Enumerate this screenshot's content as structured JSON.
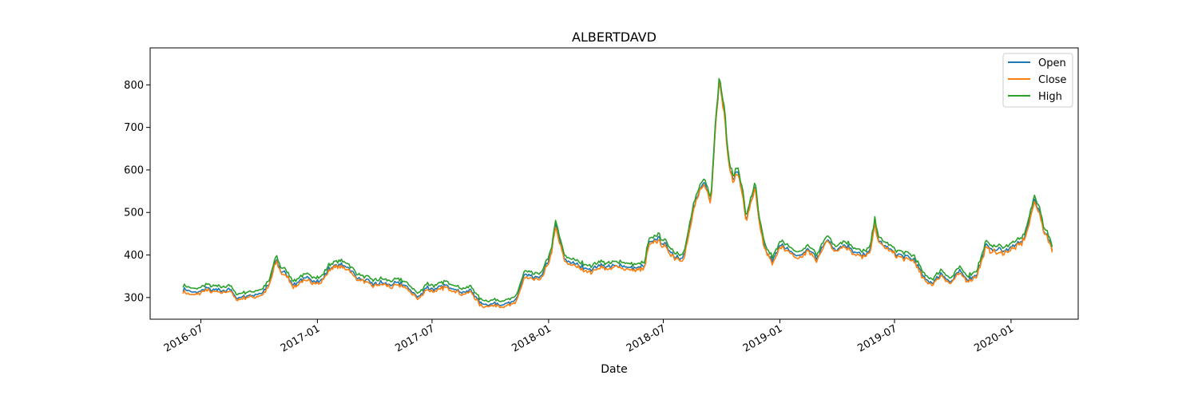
{
  "chart_data": {
    "type": "line",
    "title": "ALBERTDAVD",
    "xlabel": "Date",
    "ylabel": "",
    "xlim": [
      "2016-04-12",
      "2020-04-16"
    ],
    "ylim": [
      249,
      887
    ],
    "x_ticks": [
      "2016-07",
      "2017-01",
      "2017-07",
      "2018-01",
      "2018-07",
      "2019-01",
      "2019-07",
      "2020-01"
    ],
    "y_ticks": [
      300,
      400,
      500,
      600,
      700,
      800
    ],
    "legend": {
      "position": "top-right",
      "entries": [
        "Open",
        "Close",
        "High"
      ]
    },
    "grid": false,
    "anchor_x": [
      "2016-06-03",
      "2016-06-10",
      "2016-06-24",
      "2016-07-08",
      "2016-07-22",
      "2016-08-05",
      "2016-08-15",
      "2016-08-26",
      "2016-09-09",
      "2016-09-23",
      "2016-10-07",
      "2016-10-17",
      "2016-10-28",
      "2016-11-04",
      "2016-11-15",
      "2016-11-25",
      "2016-12-09",
      "2016-12-23",
      "2017-01-06",
      "2017-01-20",
      "2017-02-03",
      "2017-02-17",
      "2017-03-03",
      "2017-03-17",
      "2017-03-31",
      "2017-04-14",
      "2017-04-28",
      "2017-05-12",
      "2017-05-26",
      "2017-06-09",
      "2017-06-23",
      "2017-07-07",
      "2017-07-21",
      "2017-08-04",
      "2017-08-18",
      "2017-09-01",
      "2017-09-15",
      "2017-09-29",
      "2017-10-13",
      "2017-10-27",
      "2017-11-10",
      "2017-11-24",
      "2017-12-08",
      "2017-12-22",
      "2018-01-05",
      "2018-01-12",
      "2018-01-26",
      "2018-02-09",
      "2018-02-23",
      "2018-03-09",
      "2018-03-23",
      "2018-04-06",
      "2018-04-20",
      "2018-05-04",
      "2018-05-18",
      "2018-06-01",
      "2018-06-08",
      "2018-06-22",
      "2018-07-06",
      "2018-07-20",
      "2018-08-03",
      "2018-08-17",
      "2018-08-31",
      "2018-09-07",
      "2018-09-14",
      "2018-09-21",
      "2018-09-28",
      "2018-10-05",
      "2018-10-12",
      "2018-10-19",
      "2018-10-26",
      "2018-11-02",
      "2018-11-09",
      "2018-11-16",
      "2018-11-23",
      "2018-11-30",
      "2018-12-07",
      "2018-12-21",
      "2019-01-04",
      "2019-01-18",
      "2019-02-01",
      "2019-02-15",
      "2019-03-01",
      "2019-03-15",
      "2019-03-29",
      "2019-04-12",
      "2019-04-26",
      "2019-05-10",
      "2019-05-24",
      "2019-05-31",
      "2019-06-07",
      "2019-06-21",
      "2019-07-05",
      "2019-07-19",
      "2019-08-02",
      "2019-08-16",
      "2019-08-30",
      "2019-09-13",
      "2019-09-27",
      "2019-10-11",
      "2019-10-25",
      "2019-11-08",
      "2019-11-22",
      "2019-12-06",
      "2019-12-20",
      "2020-01-03",
      "2020-01-17",
      "2020-01-24",
      "2020-01-31",
      "2020-02-07",
      "2020-02-14",
      "2020-02-21",
      "2020-02-28",
      "2020-03-06"
    ],
    "anchor_y": [
      320,
      315,
      310,
      322,
      318,
      316,
      322,
      300,
      304,
      306,
      312,
      332,
      392,
      364,
      352,
      328,
      345,
      342,
      338,
      370,
      378,
      374,
      350,
      340,
      332,
      336,
      330,
      334,
      322,
      300,
      324,
      318,
      330,
      322,
      312,
      318,
      286,
      284,
      286,
      284,
      292,
      352,
      346,
      350,
      405,
      470,
      390,
      380,
      372,
      365,
      376,
      370,
      378,
      372,
      368,
      372,
      425,
      440,
      420,
      396,
      396,
      505,
      570,
      560,
      525,
      700,
      820,
      740,
      620,
      575,
      600,
      560,
      480,
      525,
      560,
      475,
      420,
      385,
      430,
      405,
      398,
      415,
      390,
      440,
      415,
      425,
      412,
      398,
      410,
      478,
      430,
      418,
      402,
      396,
      388,
      346,
      335,
      358,
      335,
      362,
      342,
      356,
      420,
      412,
      410,
      420,
      430,
      450,
      488,
      530,
      510,
      460,
      445,
      410
    ],
    "series": [
      {
        "name": "Open",
        "color": "#1f77b4"
      },
      {
        "name": "Close",
        "color": "#ff7f0e"
      },
      {
        "name": "High",
        "color": "#2ca02c"
      }
    ]
  }
}
